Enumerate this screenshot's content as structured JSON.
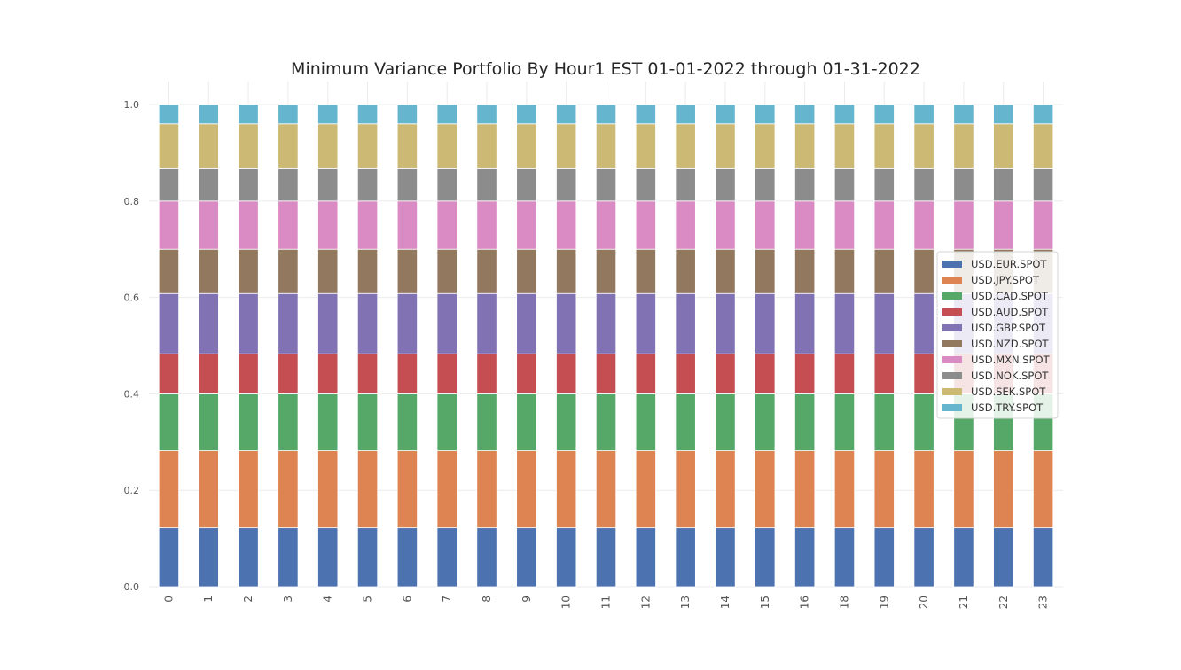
{
  "chart_data": {
    "type": "bar",
    "stacked": true,
    "title": "Minimum Variance Portfolio By Hour1 EST 01-01-2022 through 01-31-2022",
    "xlabel": "",
    "ylabel": "",
    "ylim": [
      0,
      1.0
    ],
    "yticks": [
      "0.0",
      "0.2",
      "0.4",
      "0.6",
      "0.8",
      "1.0"
    ],
    "grid": true,
    "legend_position": "center-right",
    "categories": [
      "0",
      "1",
      "2",
      "3",
      "4",
      "5",
      "6",
      "7",
      "8",
      "9",
      "10",
      "11",
      "12",
      "13",
      "14",
      "15",
      "16",
      "18",
      "19",
      "20",
      "21",
      "22",
      "23"
    ],
    "series": [
      {
        "name": "USD.EUR.SPOT",
        "color": "#4c72b0",
        "value": 0.122
      },
      {
        "name": "USD.JPY.SPOT",
        "color": "#dd8452",
        "value": 0.16
      },
      {
        "name": "USD.CAD.SPOT",
        "color": "#55a868",
        "value": 0.118
      },
      {
        "name": "USD.AUD.SPOT",
        "color": "#c44e52",
        "value": 0.083
      },
      {
        "name": "USD.GBP.SPOT",
        "color": "#8172b3",
        "value": 0.125
      },
      {
        "name": "USD.NZD.SPOT",
        "color": "#937860",
        "value": 0.092
      },
      {
        "name": "USD.MXN.SPOT",
        "color": "#da8bc3",
        "value": 0.1
      },
      {
        "name": "USD.NOK.SPOT",
        "color": "#8c8c8c",
        "value": 0.067
      },
      {
        "name": "USD.SEK.SPOT",
        "color": "#ccb974",
        "value": 0.093
      },
      {
        "name": "USD.TRY.SPOT",
        "color": "#64b5cd",
        "value": 0.04
      }
    ]
  }
}
